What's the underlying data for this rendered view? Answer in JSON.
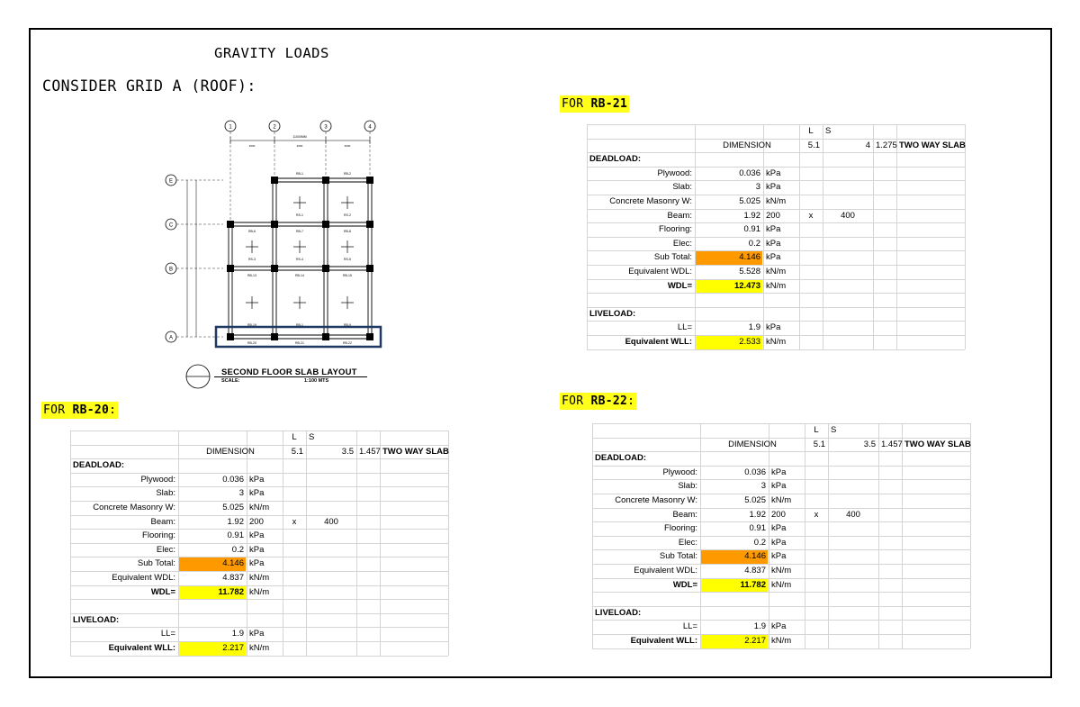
{
  "document": {
    "title": "GRAVITY LOADS",
    "section_heading": "CONSIDER GRID A (ROOF):"
  },
  "plan": {
    "grid_cols": [
      "1",
      "2",
      "3",
      "4"
    ],
    "grid_rows": [
      "E",
      "C",
      "B",
      "A"
    ],
    "overall_dim": "11000MM",
    "bay_dims": [
      "3000",
      "3000",
      "3000"
    ],
    "beam_labels_top": [
      "RB-1",
      "RB-2"
    ],
    "beam_labels_row2": [
      "RB-6",
      "RB-7",
      "RB-8"
    ],
    "beam_labels_row3": [
      "RB-13",
      "RB-14",
      "RB-15"
    ],
    "beam_labels_row4": [
      "RB-19",
      "RB-1",
      "RB-9"
    ],
    "beam_labels_bottom": [
      "RB-20",
      "RB-21",
      "RB-22"
    ],
    "slab_labels": [
      "RS-1",
      "RS-2",
      "RS-3",
      "RS-4",
      "RS-5"
    ],
    "caption_title": "SECOND FLOOR SLAB LAYOUT",
    "caption_scale_label": "SCALE:",
    "caption_scale_value": "1:100 MTS"
  },
  "rb20": {
    "label_prefix": "FOR ",
    "label_id": "RB-20",
    "label_suffix": ":",
    "hdr_L": "L",
    "hdr_S": "S",
    "dimension_label": "DIMENSION",
    "L": "5.1",
    "S": "3.5",
    "ratio": "1.457",
    "slab_type": "TWO WAY SLAB",
    "deadload_label": "DEADLOAD:",
    "rows": [
      {
        "label": "Plywood:",
        "value": "0.036",
        "unit": "kPa"
      },
      {
        "label": "Slab:",
        "value": "3",
        "unit": "kPa"
      },
      {
        "label": "Concrete Masonry W:",
        "value": "5.025",
        "unit": "kN/m"
      },
      {
        "label": "Beam:",
        "value": "1.92",
        "unit": "200",
        "extra1": "x",
        "extra2": "400"
      },
      {
        "label": "Flooring:",
        "value": "0.91",
        "unit": "kPa"
      },
      {
        "label": "Elec:",
        "value": "0.2",
        "unit": "kPa"
      },
      {
        "label": "Sub Total:",
        "value": "4.146",
        "unit": "kPa"
      },
      {
        "label": "Equivalent WDL:",
        "value": "4.837",
        "unit": "kN/m"
      },
      {
        "label": "WDL=",
        "value": "11.782",
        "unit": "kN/m"
      }
    ],
    "liveload_label": "LIVELOAD:",
    "ll_label": "LL=",
    "ll_value": "1.9",
    "ll_unit": "kPa",
    "wll_label": "Equivalent WLL:",
    "wll_value": "2.217",
    "wll_unit": "kN/m"
  },
  "rb21": {
    "label_prefix": "FOR ",
    "label_id": "RB-21",
    "label_suffix": "",
    "hdr_L": "L",
    "hdr_S": "S",
    "dimension_label": "DIMENSION",
    "L": "5.1",
    "S": "4",
    "ratio": "1.275",
    "slab_type": "TWO WAY SLAB",
    "deadload_label": "DEADLOAD:",
    "rows": [
      {
        "label": "Plywood:",
        "value": "0.036",
        "unit": "kPa"
      },
      {
        "label": "Slab:",
        "value": "3",
        "unit": "kPa"
      },
      {
        "label": "Concrete Masonry W:",
        "value": "5.025",
        "unit": "kN/m"
      },
      {
        "label": "Beam:",
        "value": "1.92",
        "unit": "200",
        "extra1": "x",
        "extra2": "400"
      },
      {
        "label": "Flooring:",
        "value": "0.91",
        "unit": "kPa"
      },
      {
        "label": "Elec:",
        "value": "0.2",
        "unit": "kPa"
      },
      {
        "label": "Sub Total:",
        "value": "4.146",
        "unit": "kPa"
      },
      {
        "label": "Equivalent WDL:",
        "value": "5.528",
        "unit": "kN/m"
      },
      {
        "label": "WDL=",
        "value": "12.473",
        "unit": "kN/m"
      }
    ],
    "liveload_label": "LIVELOAD:",
    "ll_label": "LL=",
    "ll_value": "1.9",
    "ll_unit": "kPa",
    "wll_label": "Equivalent WLL:",
    "wll_value": "2.533",
    "wll_unit": "kN/m"
  },
  "rb22": {
    "label_prefix": "FOR ",
    "label_id": "RB-22",
    "label_suffix": ":",
    "hdr_L": "L",
    "hdr_S": "S",
    "dimension_label": "DIMENSION",
    "L": "5.1",
    "S": "3.5",
    "ratio": "1.457",
    "slab_type": "TWO WAY SLAB",
    "deadload_label": "DEADLOAD:",
    "rows": [
      {
        "label": "Plywood:",
        "value": "0.036",
        "unit": "kPa"
      },
      {
        "label": "Slab:",
        "value": "3",
        "unit": "kPa"
      },
      {
        "label": "Concrete Masonry W:",
        "value": "5.025",
        "unit": "kN/m"
      },
      {
        "label": "Beam:",
        "value": "1.92",
        "unit": "200",
        "extra1": "x",
        "extra2": "400"
      },
      {
        "label": "Flooring:",
        "value": "0.91",
        "unit": "kPa"
      },
      {
        "label": "Elec:",
        "value": "0.2",
        "unit": "kPa"
      },
      {
        "label": "Sub Total:",
        "value": "4.146",
        "unit": "kPa"
      },
      {
        "label": "Equivalent WDL:",
        "value": "4.837",
        "unit": "kN/m"
      },
      {
        "label": "WDL=",
        "value": "11.782",
        "unit": "kN/m"
      }
    ],
    "liveload_label": "LIVELOAD:",
    "ll_label": "LL=",
    "ll_value": "1.9",
    "ll_unit": "kPa",
    "wll_label": "Equivalent WLL:",
    "wll_value": "2.217",
    "wll_unit": "kN/m"
  },
  "colors": {
    "highlight_yellow": "#ffff00",
    "highlight_orange": "#ff9900",
    "selection_box": "#1f3864"
  }
}
